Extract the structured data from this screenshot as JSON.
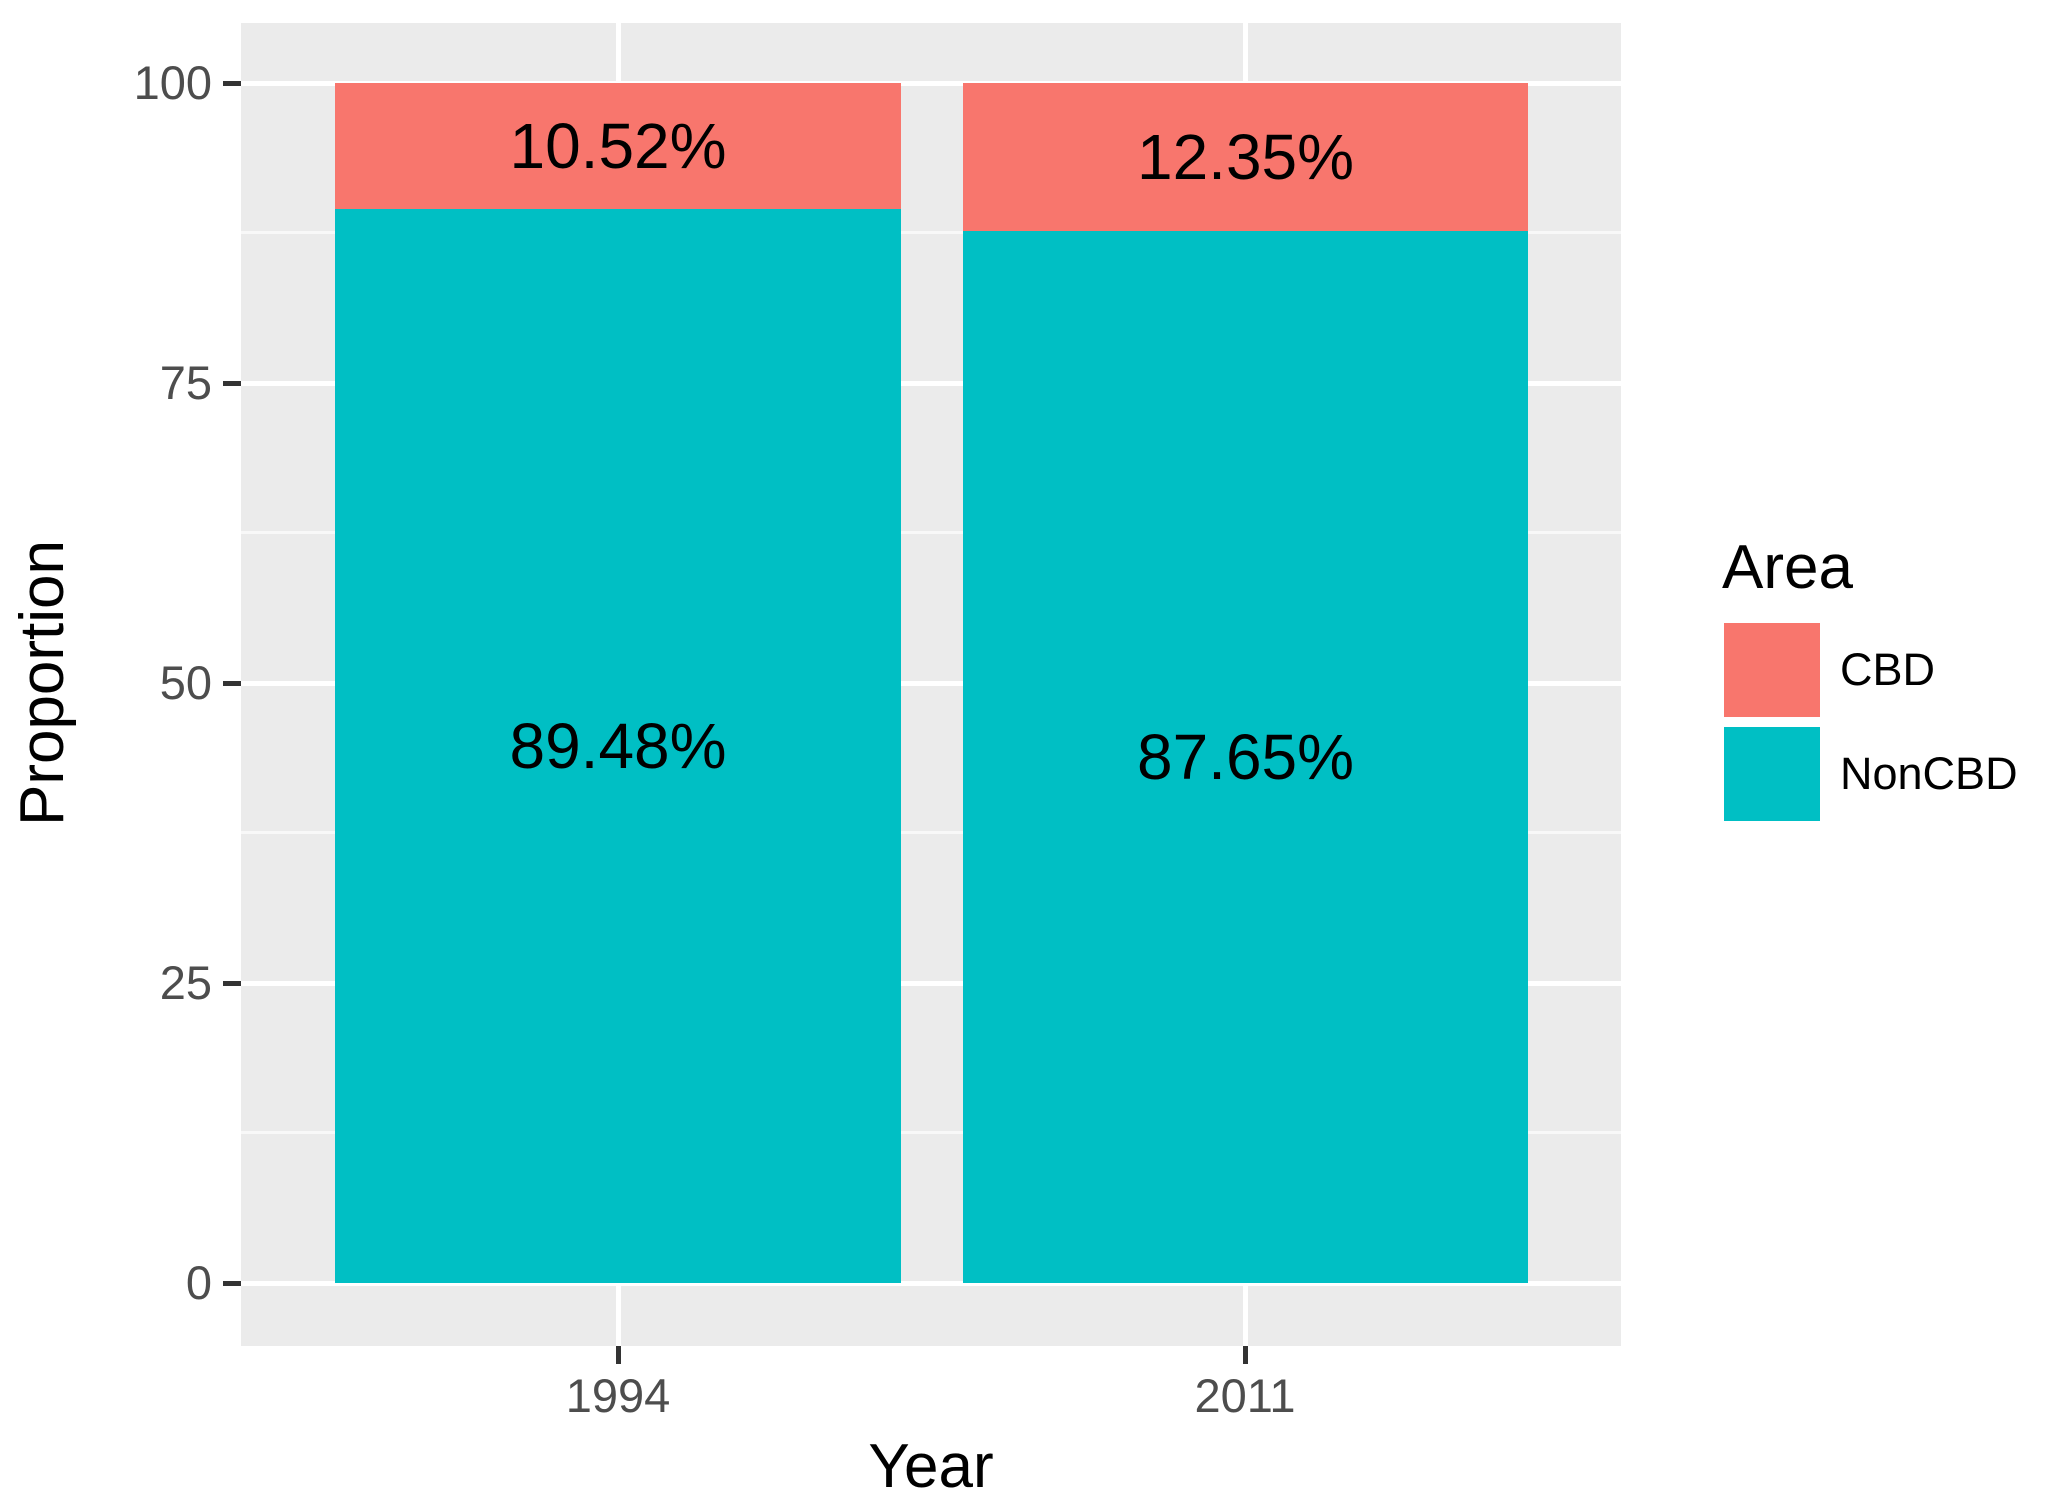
{
  "chart": {
    "y_axis": {
      "title": "Proportion",
      "tick_labels": [
        "100",
        "75",
        "50",
        "25",
        "0"
      ]
    },
    "x_axis": {
      "title": "Year",
      "tick_labels": [
        "1994",
        "2011"
      ]
    },
    "legend": {
      "title": "Area",
      "items": [
        {
          "label": "CBD"
        },
        {
          "label": "NonCBD"
        }
      ]
    },
    "bar_labels": {
      "cbd": [
        "10.52%",
        "12.35%"
      ],
      "noncbd": [
        "89.48%",
        "87.65%"
      ]
    }
  },
  "colors": {
    "cbd": "#F8766D",
    "noncbd": "#00BFC4",
    "panel_background": "#EBEBEB",
    "gridline": "#FFFFFF",
    "tick_text": "#4D4D4D"
  },
  "chart_data": {
    "type": "bar",
    "subtype": "stacked-percentage",
    "title": "",
    "xlabel": "Year",
    "ylabel": "Proportion",
    "categories": [
      "1994",
      "2011"
    ],
    "series": [
      {
        "name": "CBD",
        "values": [
          10.52,
          12.35
        ],
        "labels": [
          "10.52%",
          "12.35%"
        ],
        "color": "#F8766D"
      },
      {
        "name": "NonCBD",
        "values": [
          89.48,
          87.65
        ],
        "labels": [
          "89.48%",
          "87.65%"
        ],
        "color": "#00BFC4"
      }
    ],
    "ylim": [
      0,
      100
    ],
    "yticks": [
      0,
      25,
      50,
      75,
      100
    ],
    "grid": "major-and-minor, white on gray panel",
    "legend_title": "Area",
    "legend_position": "right",
    "bar_label_position": "segment-center"
  }
}
